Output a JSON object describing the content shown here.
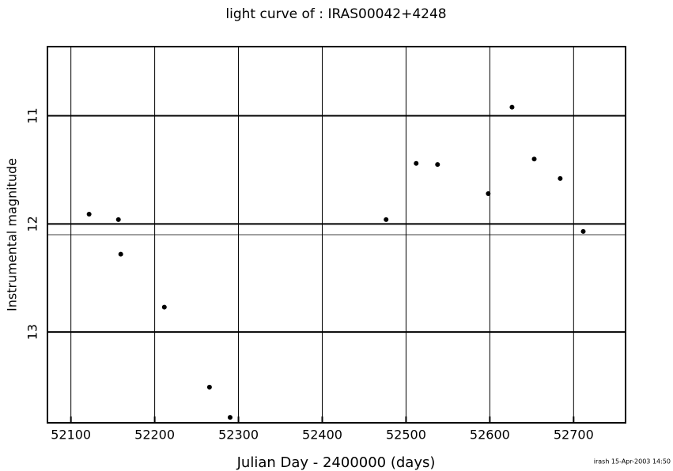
{
  "chart_data": {
    "type": "scatter",
    "title": "light curve of : IRAS00042+4248",
    "x_label": "Julian Day - 2400000 (days)",
    "y_label": "Instrumental magnitude",
    "footnote": "irash 15-Apr-2003 14:50",
    "x": [
      52121.7,
      52156.7,
      52159.5,
      52211.5,
      52265.4,
      52290,
      52476.2,
      52512.1,
      52537.6,
      52598.1,
      52626.5,
      52653,
      52684,
      52711.5
    ],
    "values": [
      11.91,
      11.96,
      12.28,
      12.77,
      13.51,
      13.79,
      11.96,
      11.44,
      11.45,
      11.72,
      10.92,
      11.4,
      11.58,
      12.07
    ],
    "color": "#000000",
    "reference_line": 12.1,
    "xlim": [
      52072,
      52762
    ],
    "ylim": [
      13.84,
      10.36
    ],
    "xticks": [
      52100,
      52200,
      52300,
      52400,
      52500,
      52600,
      52700
    ],
    "yticks": [
      11,
      12,
      13
    ],
    "grid": true
  }
}
